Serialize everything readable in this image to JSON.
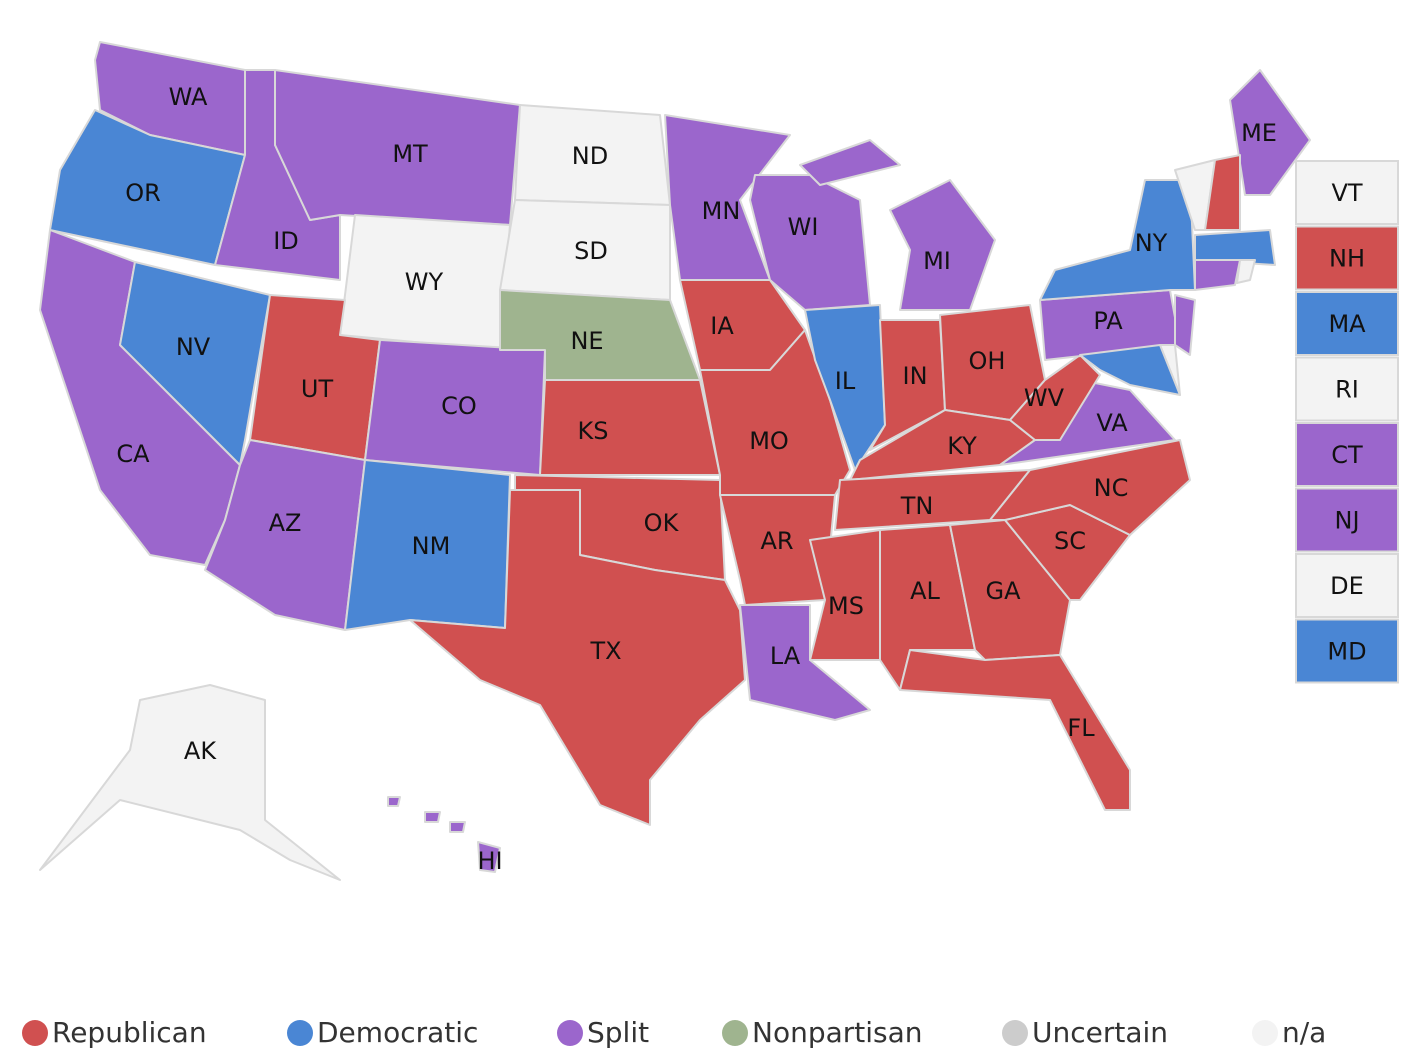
{
  "legend": [
    {
      "label": "Republican",
      "color": "#d05050"
    },
    {
      "label": "Democratic",
      "color": "#4a86d4"
    },
    {
      "label": "Split",
      "color": "#9b66cc"
    },
    {
      "label": "Nonpartisan",
      "color": "#9fb48f"
    },
    {
      "label": "Uncertain",
      "color": "#cccccc"
    },
    {
      "label": "n/a",
      "color": "#f3f3f3"
    }
  ],
  "states": [
    {
      "abbr": "WA",
      "party": "Split"
    },
    {
      "abbr": "OR",
      "party": "Democratic"
    },
    {
      "abbr": "CA",
      "party": "Split"
    },
    {
      "abbr": "NV",
      "party": "Democratic"
    },
    {
      "abbr": "ID",
      "party": "Split"
    },
    {
      "abbr": "MT",
      "party": "Split"
    },
    {
      "abbr": "WY",
      "party": "n/a"
    },
    {
      "abbr": "UT",
      "party": "Republican"
    },
    {
      "abbr": "AZ",
      "party": "Split"
    },
    {
      "abbr": "CO",
      "party": "Split"
    },
    {
      "abbr": "NM",
      "party": "Democratic"
    },
    {
      "abbr": "ND",
      "party": "n/a"
    },
    {
      "abbr": "SD",
      "party": "n/a"
    },
    {
      "abbr": "NE",
      "party": "Nonpartisan"
    },
    {
      "abbr": "KS",
      "party": "Republican"
    },
    {
      "abbr": "OK",
      "party": "Republican"
    },
    {
      "abbr": "TX",
      "party": "Republican"
    },
    {
      "abbr": "MN",
      "party": "Split"
    },
    {
      "abbr": "IA",
      "party": "Republican"
    },
    {
      "abbr": "MO",
      "party": "Republican"
    },
    {
      "abbr": "AR",
      "party": "Republican"
    },
    {
      "abbr": "LA",
      "party": "Split"
    },
    {
      "abbr": "WI",
      "party": "Split"
    },
    {
      "abbr": "IL",
      "party": "Democratic"
    },
    {
      "abbr": "MI",
      "party": "Split"
    },
    {
      "abbr": "IN",
      "party": "Republican"
    },
    {
      "abbr": "OH",
      "party": "Republican"
    },
    {
      "abbr": "KY",
      "party": "Republican"
    },
    {
      "abbr": "TN",
      "party": "Republican"
    },
    {
      "abbr": "MS",
      "party": "Republican"
    },
    {
      "abbr": "AL",
      "party": "Republican"
    },
    {
      "abbr": "GA",
      "party": "Republican"
    },
    {
      "abbr": "FL",
      "party": "Republican"
    },
    {
      "abbr": "SC",
      "party": "Republican"
    },
    {
      "abbr": "NC",
      "party": "Republican"
    },
    {
      "abbr": "VA",
      "party": "Split"
    },
    {
      "abbr": "WV",
      "party": "Republican"
    },
    {
      "abbr": "PA",
      "party": "Split"
    },
    {
      "abbr": "NY",
      "party": "Democratic"
    },
    {
      "abbr": "ME",
      "party": "Split"
    },
    {
      "abbr": "AK",
      "party": "n/a"
    },
    {
      "abbr": "HI",
      "party": "Split"
    },
    {
      "abbr": "VT",
      "party": "n/a"
    },
    {
      "abbr": "NH",
      "party": "Republican"
    },
    {
      "abbr": "MA",
      "party": "Democratic"
    },
    {
      "abbr": "RI",
      "party": "n/a"
    },
    {
      "abbr": "CT",
      "party": "Split"
    },
    {
      "abbr": "NJ",
      "party": "Split"
    },
    {
      "abbr": "DE",
      "party": "n/a"
    },
    {
      "abbr": "MD",
      "party": "Democratic"
    }
  ]
}
